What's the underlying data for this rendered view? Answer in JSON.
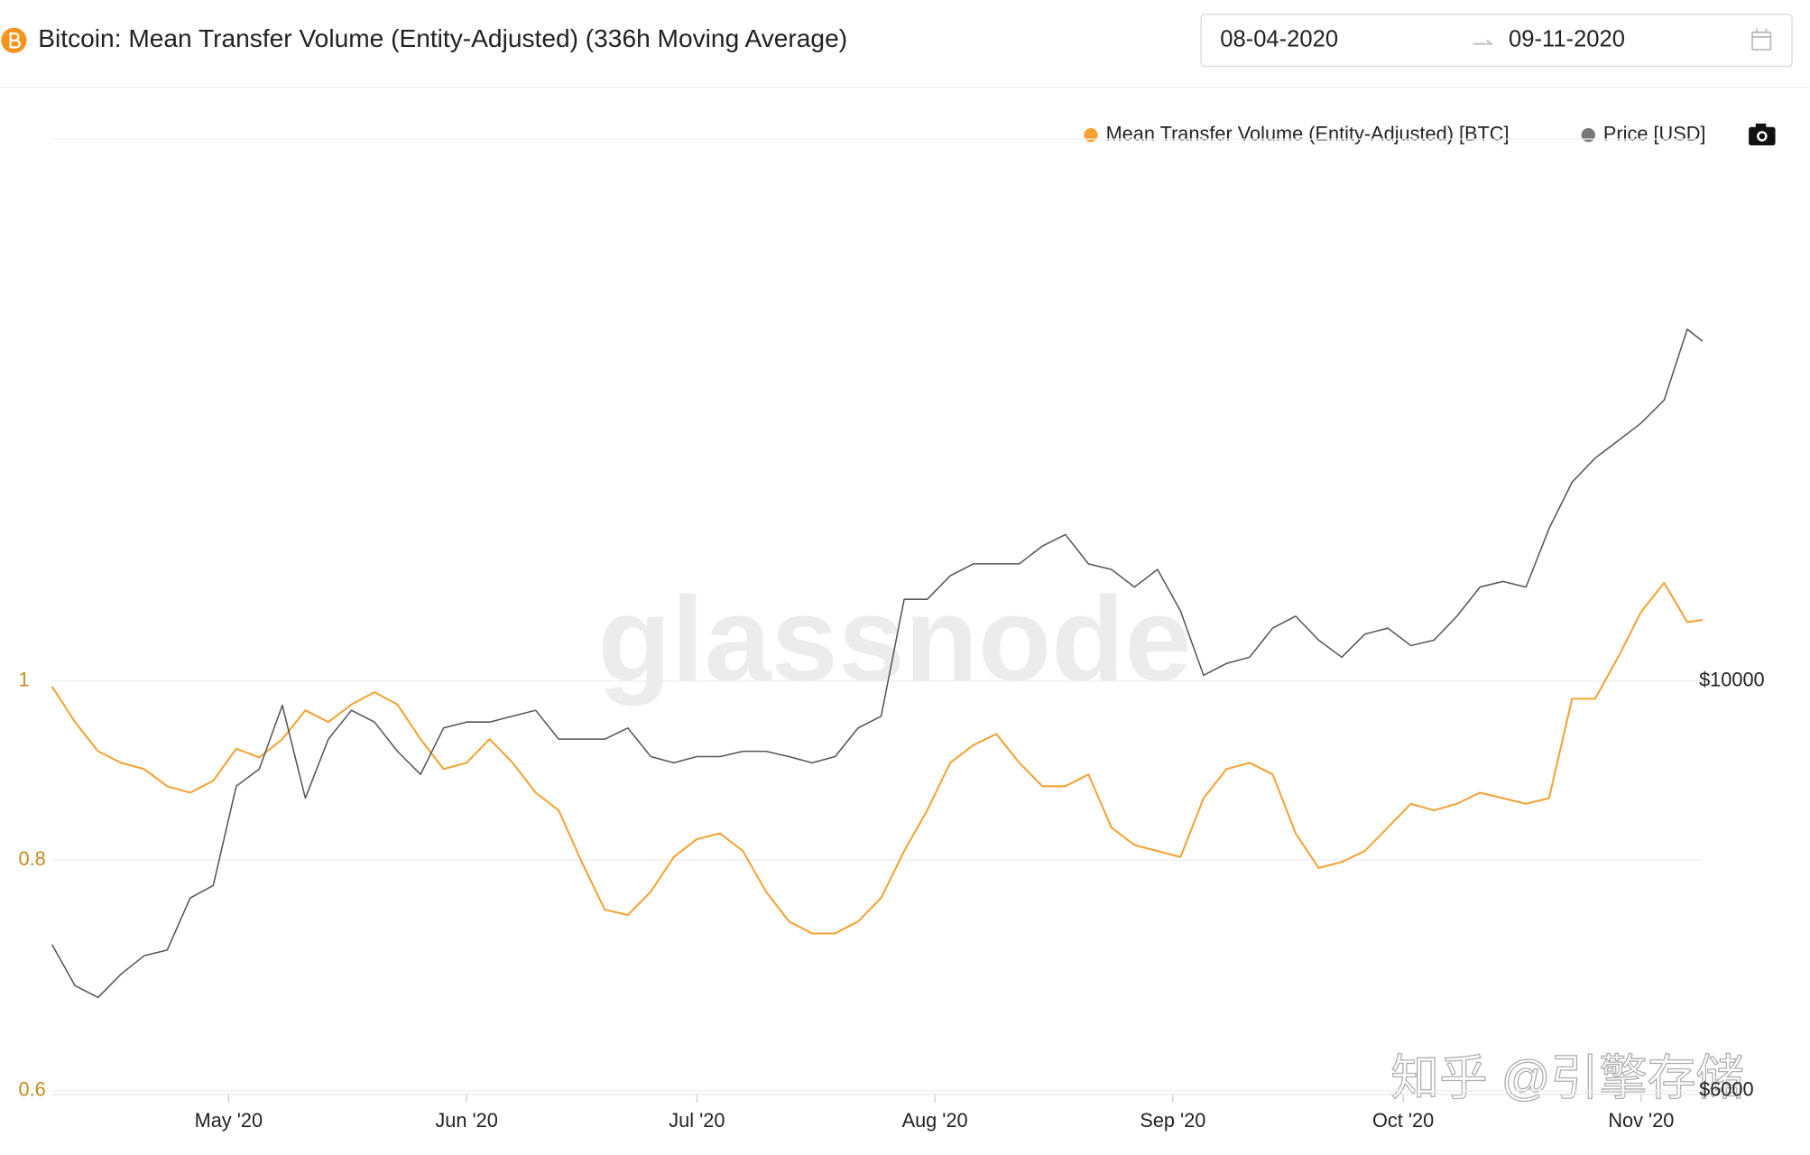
{
  "chart_data": {
    "type": "line",
    "title": "Bitcoin: Mean Transfer Volume (Entity-Adjusted) (336h Moving Average)",
    "date_range": [
      "08-04-2020",
      "09-11-2020"
    ],
    "watermarks": [
      "glassnode",
      "知乎 @引擎存储"
    ],
    "x": [
      "2020-04-08",
      "2020-04-11",
      "2020-04-14",
      "2020-04-17",
      "2020-04-20",
      "2020-04-23",
      "2020-04-26",
      "2020-04-29",
      "2020-05-02",
      "2020-05-05",
      "2020-05-08",
      "2020-05-11",
      "2020-05-14",
      "2020-05-17",
      "2020-05-20",
      "2020-05-23",
      "2020-05-26",
      "2020-05-29",
      "2020-06-01",
      "2020-06-04",
      "2020-06-07",
      "2020-06-10",
      "2020-06-13",
      "2020-06-16",
      "2020-06-19",
      "2020-06-22",
      "2020-06-25",
      "2020-06-28",
      "2020-07-01",
      "2020-07-04",
      "2020-07-07",
      "2020-07-10",
      "2020-07-13",
      "2020-07-16",
      "2020-07-19",
      "2020-07-22",
      "2020-07-25",
      "2020-07-28",
      "2020-07-31",
      "2020-08-03",
      "2020-08-06",
      "2020-08-09",
      "2020-08-12",
      "2020-08-15",
      "2020-08-18",
      "2020-08-21",
      "2020-08-24",
      "2020-08-27",
      "2020-08-30",
      "2020-09-02",
      "2020-09-05",
      "2020-09-08",
      "2020-09-11",
      "2020-09-14",
      "2020-09-17",
      "2020-09-20",
      "2020-09-23",
      "2020-09-26",
      "2020-09-29",
      "2020-10-02",
      "2020-10-05",
      "2020-10-08",
      "2020-10-11",
      "2020-10-14",
      "2020-10-17",
      "2020-10-20",
      "2020-10-23",
      "2020-10-26",
      "2020-10-29",
      "2020-11-01",
      "2020-11-04",
      "2020-11-07",
      "2020-11-09"
    ],
    "series": [
      {
        "name": "Mean Transfer Volume (Entity-Adjusted) [BTC]",
        "color": "#f4a234",
        "axis": "y",
        "values": [
          0.993,
          0.95,
          0.916,
          0.903,
          0.896,
          0.877,
          0.87,
          0.883,
          0.919,
          0.909,
          0.93,
          0.964,
          0.95,
          0.971,
          0.986,
          0.971,
          0.93,
          0.896,
          0.903,
          0.93,
          0.903,
          0.87,
          0.851,
          0.798,
          0.752,
          0.747,
          0.769,
          0.803,
          0.821,
          0.827,
          0.809,
          0.769,
          0.741,
          0.73,
          0.73,
          0.741,
          0.763,
          0.809,
          0.851,
          0.903,
          0.923,
          0.936,
          0.903,
          0.877,
          0.877,
          0.89,
          0.833,
          0.815,
          0.809,
          0.803,
          0.864,
          0.896,
          0.903,
          0.89,
          0.827,
          0.792,
          0.798,
          0.809,
          0.833,
          0.858,
          0.851,
          0.858,
          0.87,
          0.864,
          0.858,
          0.864,
          0.978,
          0.978,
          1.03,
          1.09,
          1.13,
          1.076,
          1.079
        ]
      },
      {
        "name": "Price [USD]",
        "color": "#555555",
        "axis": "y2",
        "values": [
          7200,
          6840,
          6740,
          6940,
          7100,
          7150,
          7630,
          7750,
          8770,
          8960,
          9700,
          8640,
          9300,
          9640,
          9500,
          9160,
          8900,
          9430,
          9500,
          9500,
          9570,
          9640,
          9300,
          9300,
          9300,
          9430,
          9100,
          9030,
          9100,
          9100,
          9160,
          9160,
          9100,
          9030,
          9100,
          9430,
          9570,
          11070,
          11070,
          11400,
          11570,
          11570,
          11570,
          11830,
          12000,
          11570,
          11490,
          11240,
          11490,
          10910,
          10070,
          10220,
          10300,
          10680,
          10840,
          10520,
          10300,
          10600,
          10680,
          10450,
          10520,
          10840,
          11240,
          11320,
          11240,
          12090,
          12810,
          13200,
          13490,
          13790,
          14190,
          15500,
          15270
        ]
      }
    ],
    "xlim": [
      "2020-04-08",
      "2020-11-09"
    ],
    "xticks": [
      {
        "value": "2020-05-01",
        "label": "May '20"
      },
      {
        "value": "2020-06-01",
        "label": "Jun '20"
      },
      {
        "value": "2020-07-01",
        "label": "Jul '20"
      },
      {
        "value": "2020-08-01",
        "label": "Aug '20"
      },
      {
        "value": "2020-09-01",
        "label": "Sep '20"
      },
      {
        "value": "2020-10-01",
        "label": "Oct '20"
      },
      {
        "value": "2020-11-01",
        "label": "Nov '20"
      }
    ],
    "ylim": [
      0.6,
      2
    ],
    "yticks": [
      0.6,
      0.8,
      1
    ],
    "y2lim": [
      6000,
      20000
    ],
    "y2ticks": [
      {
        "value": 6000,
        "label": "$6000"
      },
      {
        "value": 10000,
        "label": "$10000"
      }
    ],
    "log_scale": true,
    "grid": true
  }
}
